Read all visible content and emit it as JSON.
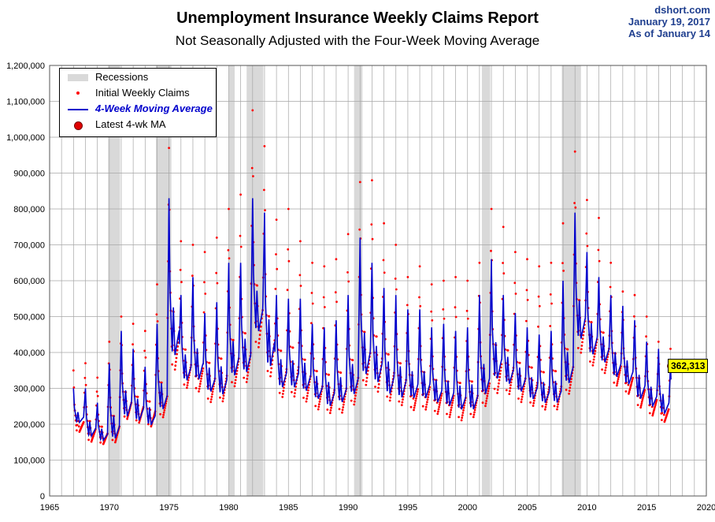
{
  "header": {
    "title": "Unemployment Insurance Weekly Claims Report",
    "subtitle": "Not Seasonally Adjusted with the Four-Week Moving Average",
    "source": "dshort.com",
    "date": "January 19, 2017",
    "as_of": "As of January 14"
  },
  "colors": {
    "recession": "#d9d9d9",
    "claims_dots": "#ff0000",
    "moving_average": "#0000cc",
    "latest_marker": "#e00000",
    "callout_bg": "#ffff00"
  },
  "chart_data": {
    "type": "line",
    "title": "Unemployment Insurance Weekly Claims Report",
    "subtitle": "Not Seasonally Adjusted with the Four-Week Moving Average",
    "xlim": [
      1965,
      2020
    ],
    "ylim": [
      0,
      1200000
    ],
    "x_ticks": [
      "1965",
      "1970",
      "1975",
      "1980",
      "1985",
      "1990",
      "1995",
      "2000",
      "2005",
      "2010",
      "2015",
      "2020"
    ],
    "y_ticks": [
      "0",
      "100,000",
      "200,000",
      "300,000",
      "400,000",
      "500,000",
      "600,000",
      "700,000",
      "800,000",
      "900,000",
      "1,000,000",
      "1,100,000",
      "1,200,000"
    ],
    "grid": true,
    "legend_position": "top-left",
    "legend": [
      "Recessions",
      "Initial Weekly Claims",
      "4-Week Moving Average",
      "Latest 4-wk MA"
    ],
    "recessions": [
      [
        1969.9,
        1970.9
      ],
      [
        1973.9,
        1975.2
      ],
      [
        1980.0,
        1980.5
      ],
      [
        1981.5,
        1982.9
      ],
      [
        1990.5,
        1991.2
      ],
      [
        2001.2,
        2001.9
      ],
      [
        2007.9,
        2009.5
      ]
    ],
    "series": [
      {
        "name": "4-Week Moving Average",
        "x": [
          1967.0,
          1968.0,
          1969.0,
          1970.0,
          1971.0,
          1972.0,
          1973.0,
          1974.0,
          1975.0,
          1976.0,
          1977.0,
          1978.0,
          1979.0,
          1980.0,
          1981.0,
          1982.0,
          1983.0,
          1984.0,
          1985.0,
          1986.0,
          1987.0,
          1988.0,
          1989.0,
          1990.0,
          1991.0,
          1992.0,
          1993.0,
          1994.0,
          1995.0,
          1996.0,
          1997.0,
          1998.0,
          1999.0,
          2000.0,
          2001.0,
          2002.0,
          2003.0,
          2004.0,
          2005.0,
          2006.0,
          2007.0,
          2008.0,
          2009.0,
          2010.0,
          2011.0,
          2012.0,
          2013.0,
          2014.0,
          2015.0,
          2016.0,
          2017.0
        ],
        "peaks": [
          300000,
          300000,
          260000,
          370000,
          460000,
          410000,
          360000,
          480000,
          830000,
          560000,
          610000,
          510000,
          540000,
          650000,
          650000,
          830000,
          790000,
          560000,
          550000,
          550000,
          480000,
          470000,
          490000,
          560000,
          720000,
          650000,
          580000,
          560000,
          520000,
          520000,
          470000,
          480000,
          460000,
          470000,
          560000,
          660000,
          560000,
          510000,
          470000,
          450000,
          460000,
          600000,
          790000,
          680000,
          610000,
          560000,
          530000,
          490000,
          430000,
          410000,
          362313
        ],
        "troughs": [
          200000,
          160000,
          150000,
          150000,
          210000,
          200000,
          190000,
          230000,
          370000,
          310000,
          310000,
          280000,
          270000,
          320000,
          330000,
          440000,
          340000,
          290000,
          290000,
          280000,
          260000,
          240000,
          250000,
          270000,
          320000,
          300000,
          270000,
          260000,
          260000,
          260000,
          250000,
          240000,
          230000,
          230000,
          270000,
          310000,
          300000,
          280000,
          260000,
          250000,
          250000,
          300000,
          420000,
          380000,
          360000,
          320000,
          300000,
          260000,
          240000,
          220000,
          220000
        ]
      },
      {
        "name": "Initial Weekly Claims",
        "x": [
          1967.0,
          1968.0,
          1969.0,
          1970.0,
          1971.0,
          1972.0,
          1973.0,
          1974.0,
          1975.0,
          1976.0,
          1977.0,
          1978.0,
          1979.0,
          1980.0,
          1981.0,
          1982.0,
          1983.0,
          1984.0,
          1985.0,
          1986.0,
          1987.0,
          1988.0,
          1989.0,
          1990.0,
          1991.0,
          1992.0,
          1993.0,
          1994.0,
          1995.0,
          1996.0,
          1997.0,
          1998.0,
          1999.0,
          2000.0,
          2001.0,
          2002.0,
          2003.0,
          2004.0,
          2005.0,
          2006.0,
          2007.0,
          2008.0,
          2009.0,
          2010.0,
          2011.0,
          2012.0,
          2013.0,
          2014.0,
          2015.0,
          2016.0,
          2017.0
        ],
        "peaks": [
          350000,
          370000,
          330000,
          430000,
          500000,
          480000,
          460000,
          590000,
          970000,
          710000,
          700000,
          680000,
          720000,
          800000,
          840000,
          1075000,
          975000,
          770000,
          800000,
          710000,
          650000,
          640000,
          660000,
          730000,
          875000,
          880000,
          760000,
          700000,
          610000,
          640000,
          590000,
          600000,
          610000,
          600000,
          650000,
          800000,
          750000,
          680000,
          660000,
          640000,
          650000,
          760000,
          960000,
          825000,
          775000,
          650000,
          570000,
          560000,
          500000,
          430000,
          410000
        ],
        "troughs": [
          170000,
          140000,
          135000,
          135000,
          200000,
          190000,
          180000,
          200000,
          320000,
          280000,
          270000,
          240000,
          240000,
          280000,
          290000,
          380000,
          300000,
          250000,
          250000,
          240000,
          220000,
          210000,
          210000,
          230000,
          280000,
          260000,
          240000,
          230000,
          220000,
          220000,
          210000,
          200000,
          190000,
          200000,
          230000,
          260000,
          260000,
          240000,
          230000,
          220000,
          220000,
          260000,
          370000,
          340000,
          320000,
          290000,
          270000,
          230000,
          210000,
          195000,
          240000
        ]
      }
    ],
    "latest": {
      "x": 2017.04,
      "y": 362313,
      "label": "362,313"
    }
  },
  "legend_labels": {
    "recessions": "Recessions",
    "claims": "Initial Weekly Claims",
    "ma": "4-Week Moving Average",
    "latest": "Latest 4-wk MA"
  }
}
